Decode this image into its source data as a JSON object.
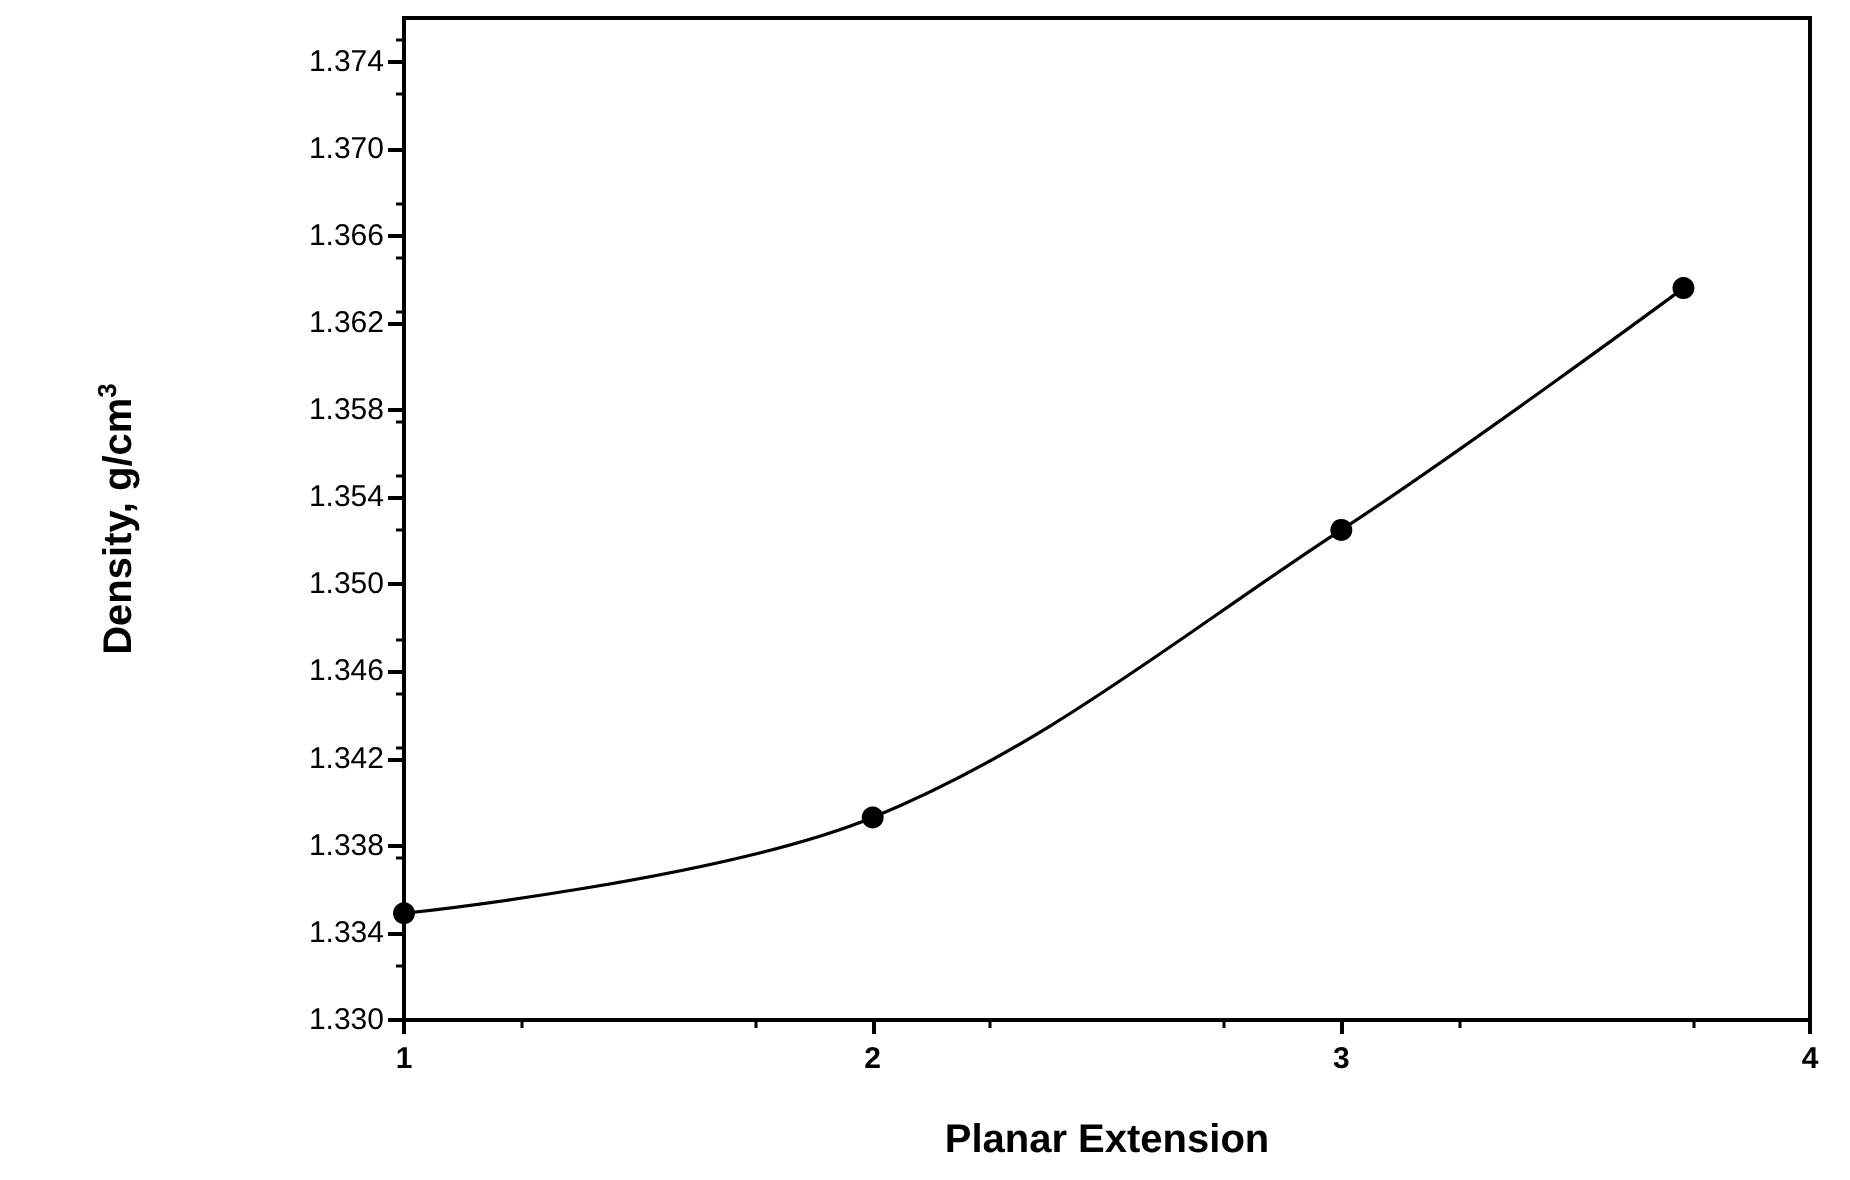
{
  "chart_data": {
    "type": "line",
    "xlabel": "Planar Extension",
    "ylabel": "Density, g/cm$^{3}$",
    "series": [
      {
        "color": "#000000",
        "x": [
          1,
          2,
          3,
          3.73
        ],
        "values": [
          1.3349,
          1.3393,
          1.3525,
          1.3636
        ]
      }
    ],
    "xlim": [
      1,
      4
    ],
    "xticks": [
      1,
      2,
      3,
      4
    ],
    "ylim": [
      1.33,
      1.376
    ],
    "yticks": [
      {
        "value": 1.33,
        "label": "1.330"
      },
      {
        "value": 1.334,
        "label": "1.334"
      },
      {
        "value": 1.338,
        "label": "1.338"
      },
      {
        "value": 1.342,
        "label": "1.342"
      },
      {
        "value": 1.346,
        "label": "1.346"
      },
      {
        "value": 1.35,
        "label": "1.350"
      },
      {
        "value": 1.354,
        "label": "1.354"
      },
      {
        "value": 1.358,
        "label": "1.358"
      },
      {
        "value": 1.362,
        "label": "1.362"
      },
      {
        "value": 1.366,
        "label": "1.366"
      },
      {
        "value": 1.37,
        "label": "1.370"
      },
      {
        "value": 1.374,
        "label": "1.374"
      }
    ],
    "marker": "circle",
    "line_style": "solid"
  }
}
